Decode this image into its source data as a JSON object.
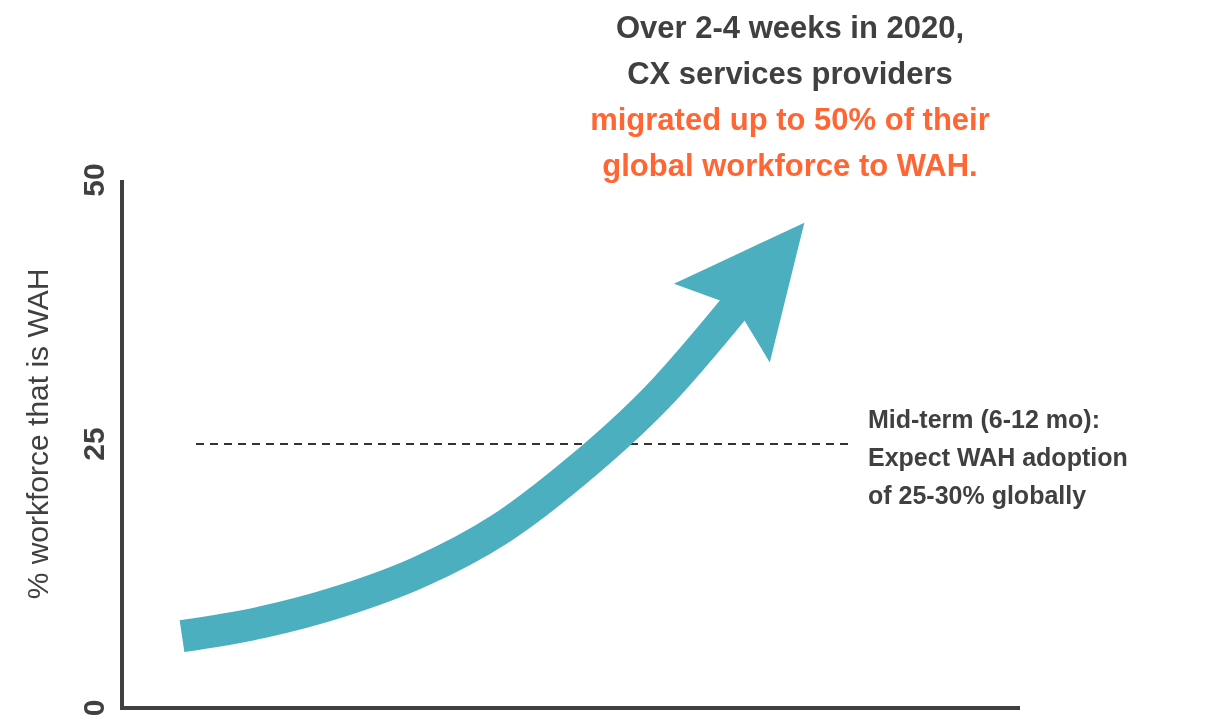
{
  "chart_data": {
    "type": "line",
    "title": "Over 2-4 weeks in 2020, CX services providers",
    "subtitle": "migrated up to 50% of their global workforce to WAH.",
    "ylabel": "% workforce that is WAH",
    "categories": [
      null,
      null,
      null,
      null,
      null,
      null,
      null,
      null,
      null,
      null,
      null
    ],
    "series": [
      {
        "color": "#4bafbf",
        "values": [
          6.8,
          8.1,
          10.1,
          12.9,
          16.9,
          22.6,
          29.5,
          38.2,
          null,
          null,
          null
        ]
      }
    ],
    "ylim": [
      0,
      50
    ],
    "yticks": [
      0,
      25,
      50
    ],
    "tick_labels": "y",
    "grid": false,
    "marker": "none",
    "line_style": "solid",
    "ref_lines": [
      {
        "axis": "y",
        "value": 25,
        "label": "Mid-term (6-12 mo): Expect WAH adoption of 25-30% globally",
        "color": "#333333",
        "line_style": "dashed"
      }
    ]
  }
}
